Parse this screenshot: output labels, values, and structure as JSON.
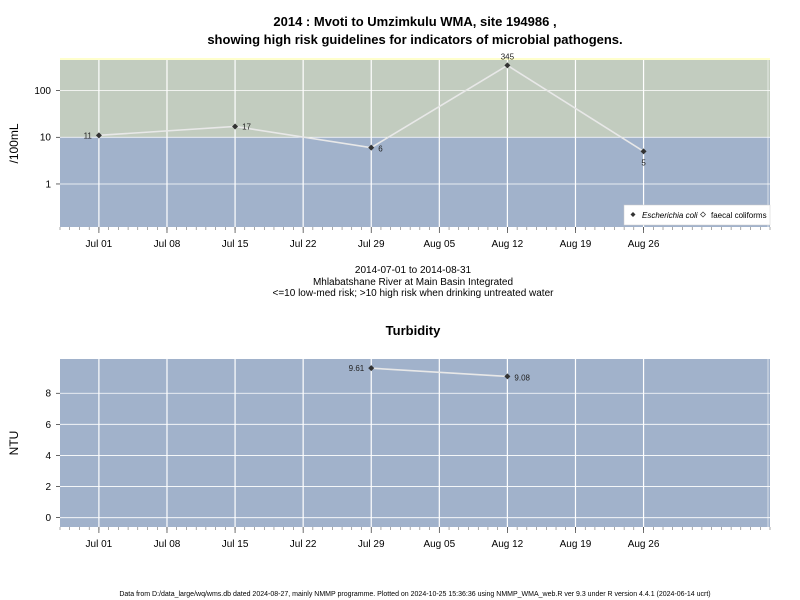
{
  "header": {
    "title_line1": "2014 : Mvoti to Umzimkulu WMA, site 194986 ,",
    "title_line2": "showing high risk guidelines for indicators of microbial pathogens."
  },
  "subtitle": {
    "line1": "2014-07-01 to 2014-08-31",
    "line2": "Mhlabatshane River at Main Basin Integrated",
    "line3": "<=10 low-med risk; >10 high risk when drinking untreated water"
  },
  "footer": {
    "text": "Data from D:/data_large/wq/wms.db dated 2024-08-27, mainly NMMP programme. Plotted on 2024-10-25 15:36:36 using NMMP_WMA_web.R ver 9.3 under R version 4.4.1 (2024-06-14 ucrt)"
  },
  "colors": {
    "high_risk_band": "#c2ccbf",
    "low_risk_band": "#a1b2cb",
    "grid": "#ffffff",
    "line": "#e8e8e8",
    "point": "#333333",
    "top_strip": "#ffffcc"
  },
  "chart_data": [
    {
      "type": "line",
      "ylabel": "/100mL",
      "y_scale": "log10",
      "ylim": [
        0.12,
        450
      ],
      "yticks": [
        1,
        10,
        100
      ],
      "ytick_labels": [
        "1",
        "10",
        "100"
      ],
      "risk_threshold": 10,
      "x_range": [
        "2014-06-27",
        "2014-09-08"
      ],
      "xticks": [
        "2014-07-01",
        "2014-07-08",
        "2014-07-15",
        "2014-07-22",
        "2014-07-29",
        "2014-08-05",
        "2014-08-12",
        "2014-08-19",
        "2014-08-26"
      ],
      "xtick_labels": [
        "Jul 01",
        "Jul 08",
        "Jul 15",
        "Jul 22",
        "Jul 29",
        "Aug 05",
        "Aug 12",
        "Aug 19",
        "Aug 26"
      ],
      "legend": {
        "position": "bottom-right",
        "entries": [
          "Escherichia coli",
          "faecal coliforms"
        ]
      },
      "series": [
        {
          "name": "Escherichia coli",
          "x": [
            "2014-07-01",
            "2014-07-15",
            "2014-07-29",
            "2014-08-12",
            "2014-08-26"
          ],
          "values": [
            11,
            17,
            6,
            345,
            5
          ],
          "labels": [
            "11",
            "17",
            "6",
            "345",
            "5"
          ]
        }
      ]
    },
    {
      "type": "line",
      "title": "Turbidity",
      "ylabel": "NTU",
      "ylim": [
        -0.6,
        10.2
      ],
      "yticks": [
        0,
        2,
        4,
        6,
        8
      ],
      "ytick_labels": [
        "0",
        "2",
        "4",
        "6",
        "8"
      ],
      "x_range": [
        "2014-06-27",
        "2014-09-08"
      ],
      "xticks": [
        "2014-07-01",
        "2014-07-08",
        "2014-07-15",
        "2014-07-22",
        "2014-07-29",
        "2014-08-05",
        "2014-08-12",
        "2014-08-19",
        "2014-08-26"
      ],
      "xtick_labels": [
        "Jul 01",
        "Jul 08",
        "Jul 15",
        "Jul 22",
        "Jul 29",
        "Aug 05",
        "Aug 12",
        "Aug 19",
        "Aug 26"
      ],
      "series": [
        {
          "x": [
            "2014-07-29",
            "2014-08-12"
          ],
          "values": [
            9.61,
            9.08
          ],
          "labels": [
            "9.61",
            "9.08"
          ]
        }
      ]
    }
  ]
}
